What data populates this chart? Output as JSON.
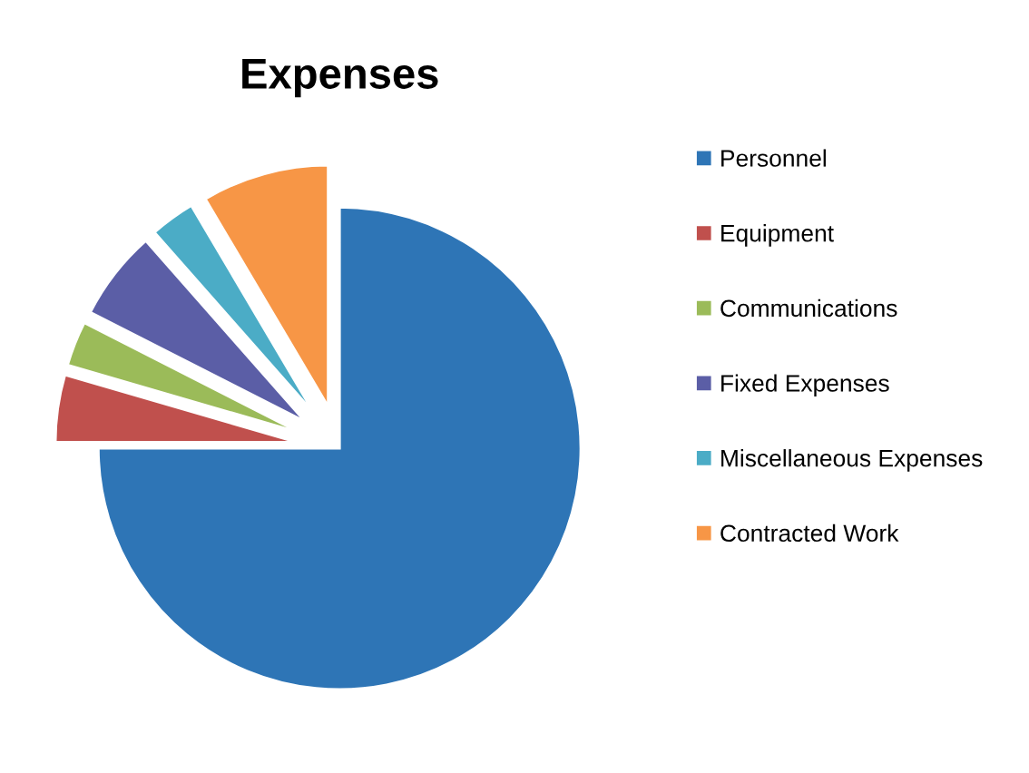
{
  "chart_data": {
    "type": "pie",
    "title": "Expenses",
    "categories": [
      "Personnel",
      "Equipment",
      "Communications",
      "Fixed Expenses",
      "Miscellaneous Expenses",
      "Contracted Work"
    ],
    "values": [
      75,
      4.5,
      3,
      6,
      3,
      8.5
    ],
    "colors": [
      "#2e75b6",
      "#c0504d",
      "#9bbb59",
      "#5b5ea6",
      "#4bacc6",
      "#f79646"
    ],
    "legend": "right"
  }
}
